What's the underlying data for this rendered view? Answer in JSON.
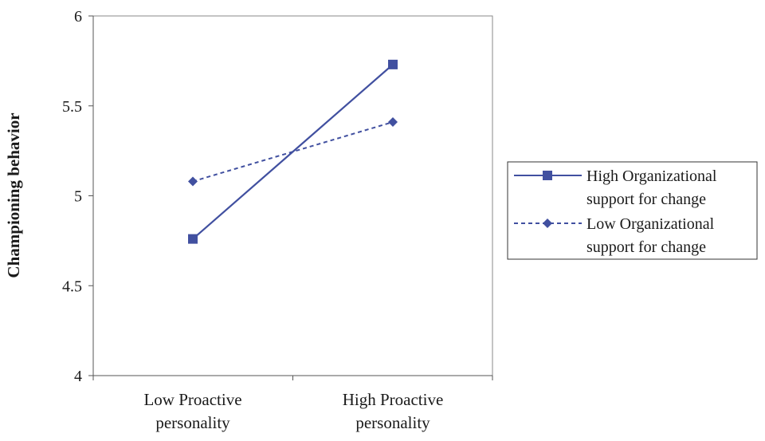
{
  "chart_data": {
    "type": "line",
    "title": "",
    "xlabel": "",
    "ylabel": "Championing behavior",
    "categories": [
      [
        "Low Proactive",
        "personality"
      ],
      [
        "High Proactive",
        "personality"
      ]
    ],
    "ylim": [
      4,
      6
    ],
    "yticks": [
      "4",
      "4.5",
      "5",
      "5.5",
      "6"
    ],
    "grid": false,
    "legend_position": "right",
    "series": [
      {
        "name": [
          "High Organizational",
          "support for change"
        ],
        "values": [
          4.76,
          5.73
        ],
        "line_style": "solid",
        "marker": "square",
        "color": "#4150a0"
      },
      {
        "name": [
          "Low Organizational",
          "support for change"
        ],
        "values": [
          5.08,
          5.41
        ],
        "line_style": "dashed",
        "marker": "diamond",
        "color": "#4150a0"
      }
    ]
  }
}
